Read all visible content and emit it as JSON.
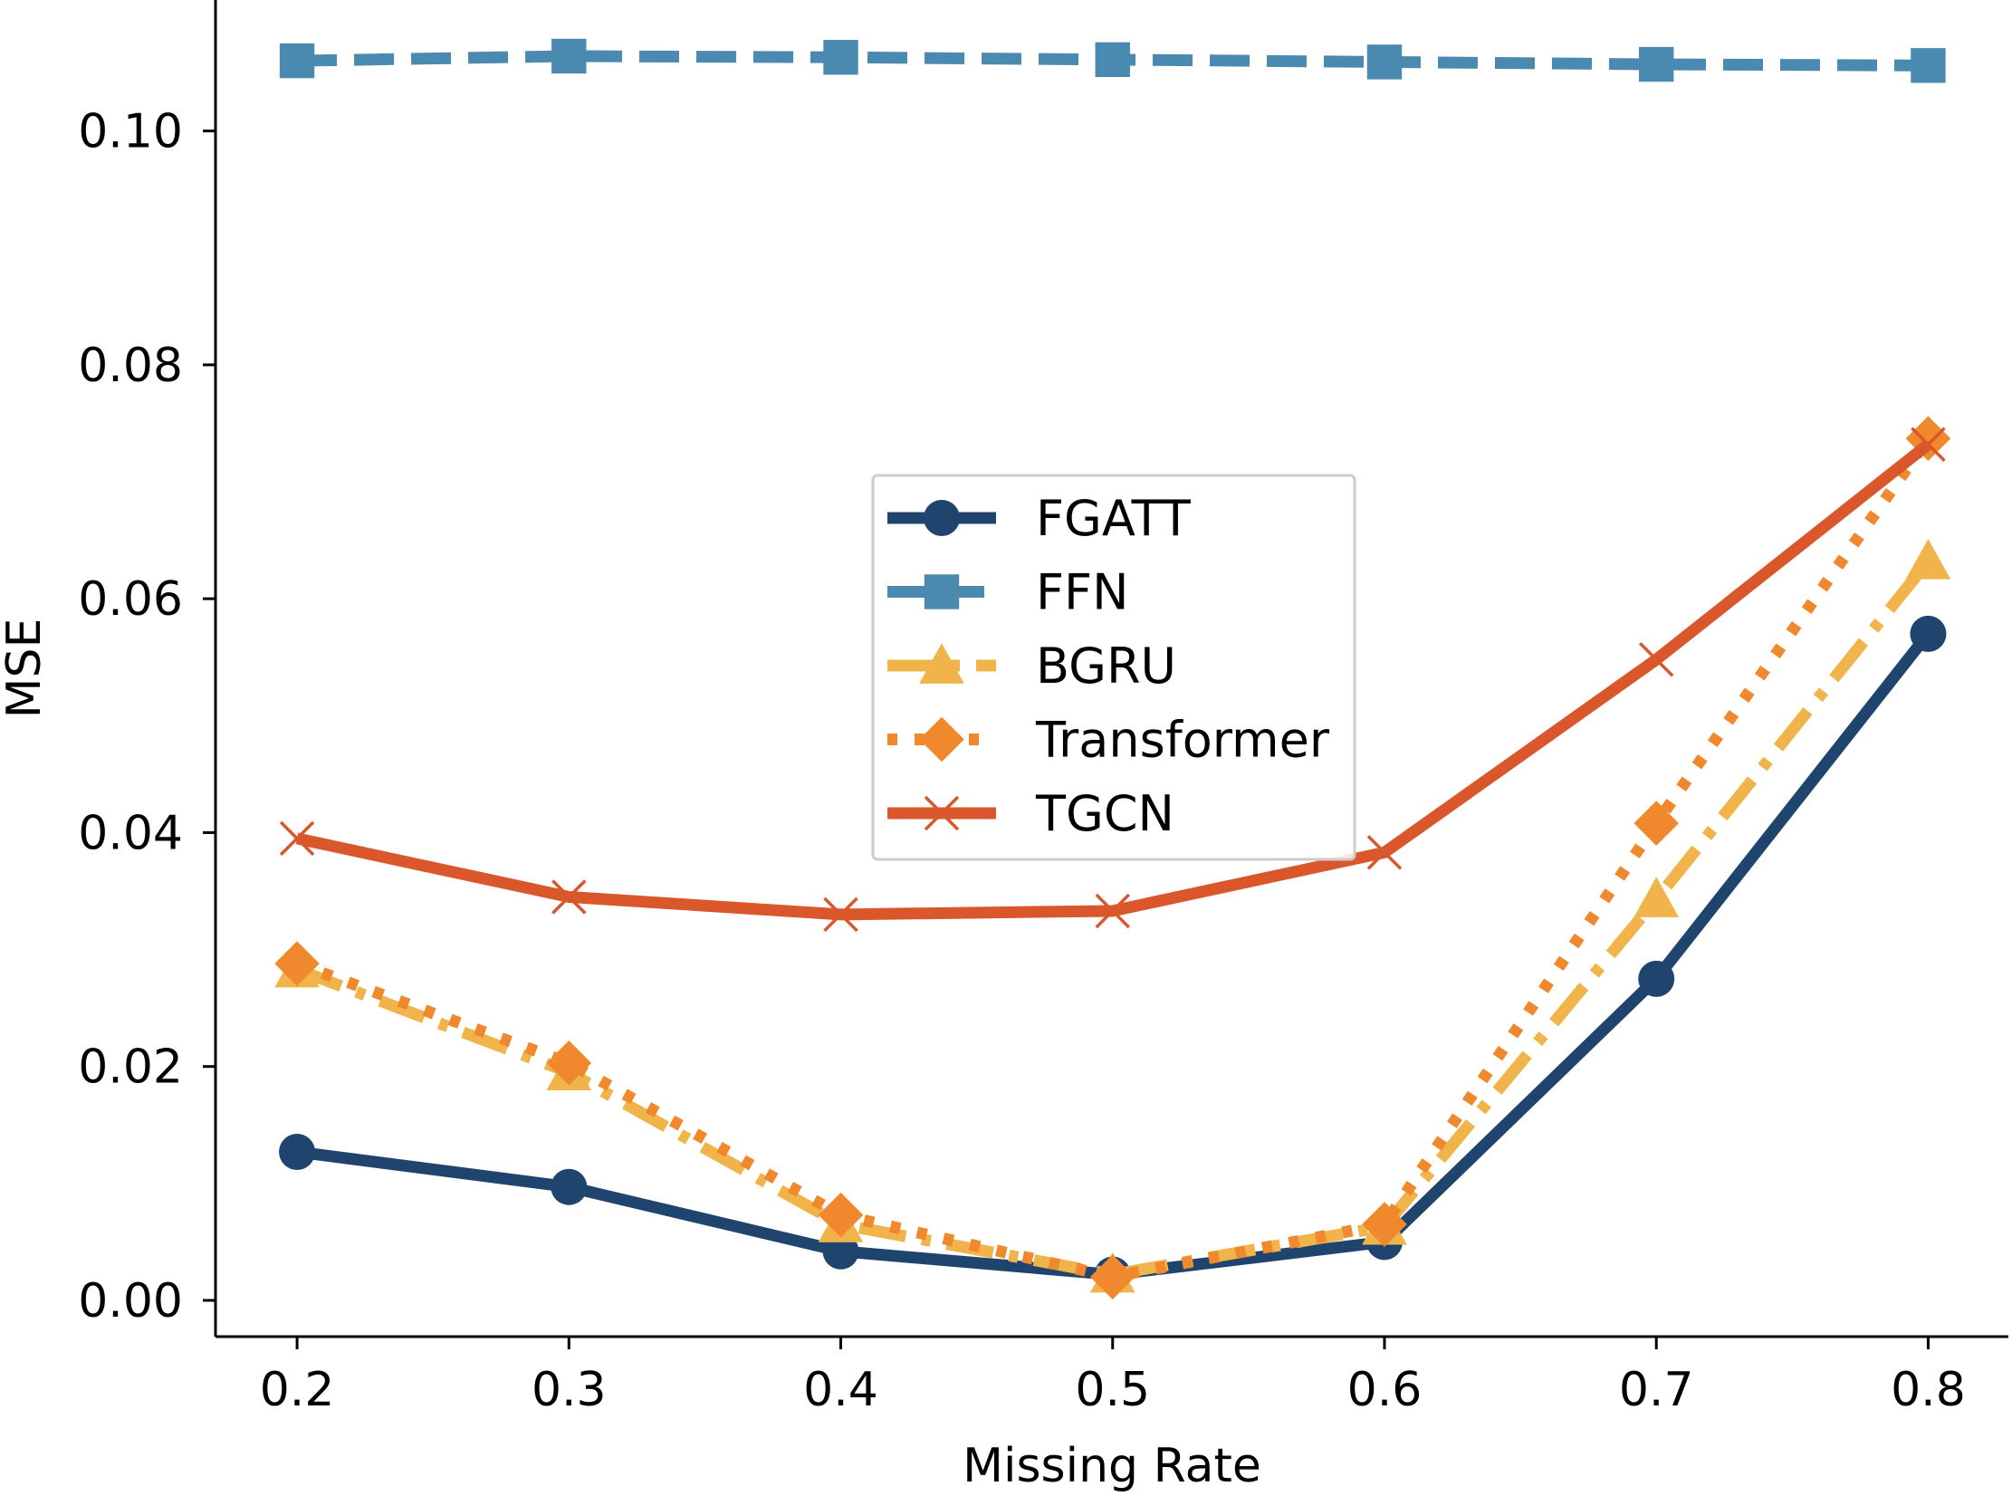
{
  "chart_data": {
    "type": "line",
    "title": "",
    "xlabel": "Missing Rate",
    "ylabel": "MSE",
    "x": [
      0.2,
      0.3,
      0.4,
      0.5,
      0.6,
      0.7,
      0.8
    ],
    "xticks": [
      "0.2",
      "0.3",
      "0.4",
      "0.5",
      "0.6",
      "0.7",
      "0.8"
    ],
    "yticks": [
      "0.00",
      "0.02",
      "0.04",
      "0.06",
      "0.08",
      "0.10"
    ],
    "xlim": [
      0.17,
      0.8295
    ],
    "ylim": [
      -0.0031,
      0.1112
    ],
    "grid": false,
    "legend_position": "center",
    "series": [
      {
        "name": "FGATT",
        "values": [
          0.0127,
          0.0097,
          0.0042,
          0.0022,
          0.005,
          0.0275,
          0.057
        ],
        "color": "#1f456e",
        "marker": "circle",
        "linestyle": "solid"
      },
      {
        "name": "FFN",
        "values": [
          0.106,
          0.1064,
          0.1063,
          0.1061,
          0.1059,
          0.1057,
          0.1056
        ],
        "color": "#4a8ab0",
        "marker": "square",
        "linestyle": "dashed"
      },
      {
        "name": "BGRU",
        "values": [
          0.0283,
          0.0195,
          0.0065,
          0.0022,
          0.0063,
          0.0343,
          0.0632
        ],
        "color": "#f0b44a",
        "marker": "triangle",
        "linestyle": "dashdot"
      },
      {
        "name": "Transformer",
        "values": [
          0.0288,
          0.0203,
          0.0073,
          0.002,
          0.0065,
          0.0408,
          0.0737
        ],
        "color": "#f0892e",
        "marker": "diamond",
        "linestyle": "dotted"
      },
      {
        "name": "TGCN",
        "values": [
          0.0395,
          0.0345,
          0.033,
          0.0333,
          0.0383,
          0.0548,
          0.0732
        ],
        "color": "#d9572a",
        "marker": "x",
        "linestyle": "solid"
      }
    ]
  }
}
